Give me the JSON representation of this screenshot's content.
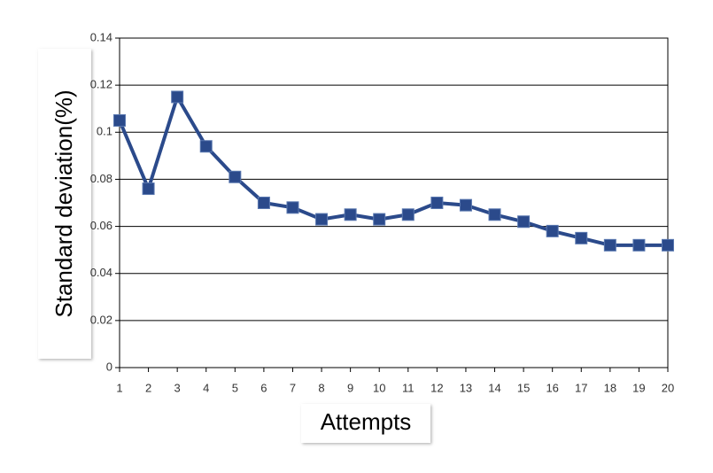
{
  "chart_data": {
    "type": "line",
    "y_label": "Standard deviation(%)",
    "x_label": "Attempts",
    "x": [
      1,
      2,
      3,
      4,
      5,
      6,
      7,
      8,
      9,
      10,
      11,
      12,
      13,
      14,
      15,
      16,
      17,
      18,
      19,
      20
    ],
    "series": [
      {
        "color": "#2b4a8b",
        "values": [
          0.105,
          0.076,
          0.115,
          0.094,
          0.081,
          0.07,
          0.068,
          0.063,
          0.065,
          0.063,
          0.065,
          0.07,
          0.069,
          0.065,
          0.062,
          0.058,
          0.055,
          0.052,
          0.052,
          0.052
        ]
      }
    ],
    "xlim": [
      1,
      20
    ],
    "xticks": [
      1,
      2,
      3,
      4,
      5,
      6,
      7,
      8,
      9,
      10,
      11,
      12,
      13,
      14,
      15,
      16,
      17,
      18,
      19,
      20
    ],
    "ylim": [
      0,
      0.14
    ],
    "yticks": [
      0,
      0.02,
      0.04,
      0.06,
      0.08,
      0.1,
      0.12,
      0.14
    ],
    "grid": true
  }
}
